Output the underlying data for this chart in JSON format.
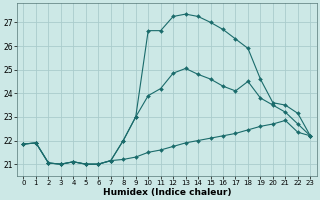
{
  "xlabel": "Humidex (Indice chaleur)",
  "bg_color": "#cce8e6",
  "grid_color": "#aacccc",
  "line_color": "#1a6b6b",
  "xlim": [
    -0.5,
    23.5
  ],
  "ylim": [
    20.5,
    27.8
  ],
  "yticks": [
    21,
    22,
    23,
    24,
    25,
    26,
    27
  ],
  "xticks": [
    0,
    1,
    2,
    3,
    4,
    5,
    6,
    7,
    8,
    9,
    10,
    11,
    12,
    13,
    14,
    15,
    16,
    17,
    18,
    19,
    20,
    21,
    22,
    23
  ],
  "line1_x": [
    0,
    1,
    2,
    3,
    4,
    5,
    6,
    7,
    8,
    9,
    10,
    11,
    12,
    13,
    14,
    15,
    16,
    17,
    18,
    19,
    20,
    21,
    22,
    23
  ],
  "line1_y": [
    21.85,
    21.9,
    21.05,
    21.0,
    21.1,
    21.0,
    21.0,
    21.15,
    21.2,
    21.3,
    21.5,
    21.6,
    21.75,
    21.9,
    22.0,
    22.1,
    22.2,
    22.3,
    22.45,
    22.6,
    22.7,
    22.85,
    22.35,
    22.2
  ],
  "line2_x": [
    0,
    1,
    2,
    3,
    4,
    5,
    6,
    7,
    8,
    9,
    10,
    11,
    12,
    13,
    14,
    15,
    16,
    17,
    18,
    19,
    20,
    21,
    22,
    23
  ],
  "line2_y": [
    21.85,
    21.9,
    21.05,
    21.0,
    21.1,
    21.0,
    21.0,
    21.15,
    22.0,
    23.0,
    23.9,
    24.2,
    24.85,
    25.05,
    24.8,
    24.6,
    24.3,
    24.1,
    24.5,
    23.8,
    23.5,
    23.2,
    22.7,
    22.2
  ],
  "line3_x": [
    0,
    1,
    2,
    3,
    4,
    5,
    6,
    7,
    8,
    9,
    10,
    11,
    12,
    13,
    14,
    15,
    16,
    17,
    18,
    19,
    20,
    21,
    22,
    23
  ],
  "line3_y": [
    21.85,
    21.9,
    21.05,
    21.0,
    21.1,
    21.0,
    21.0,
    21.15,
    22.0,
    23.0,
    26.65,
    26.65,
    27.25,
    27.35,
    27.25,
    27.0,
    26.7,
    26.3,
    25.9,
    24.6,
    23.6,
    23.5,
    23.15,
    22.2
  ]
}
